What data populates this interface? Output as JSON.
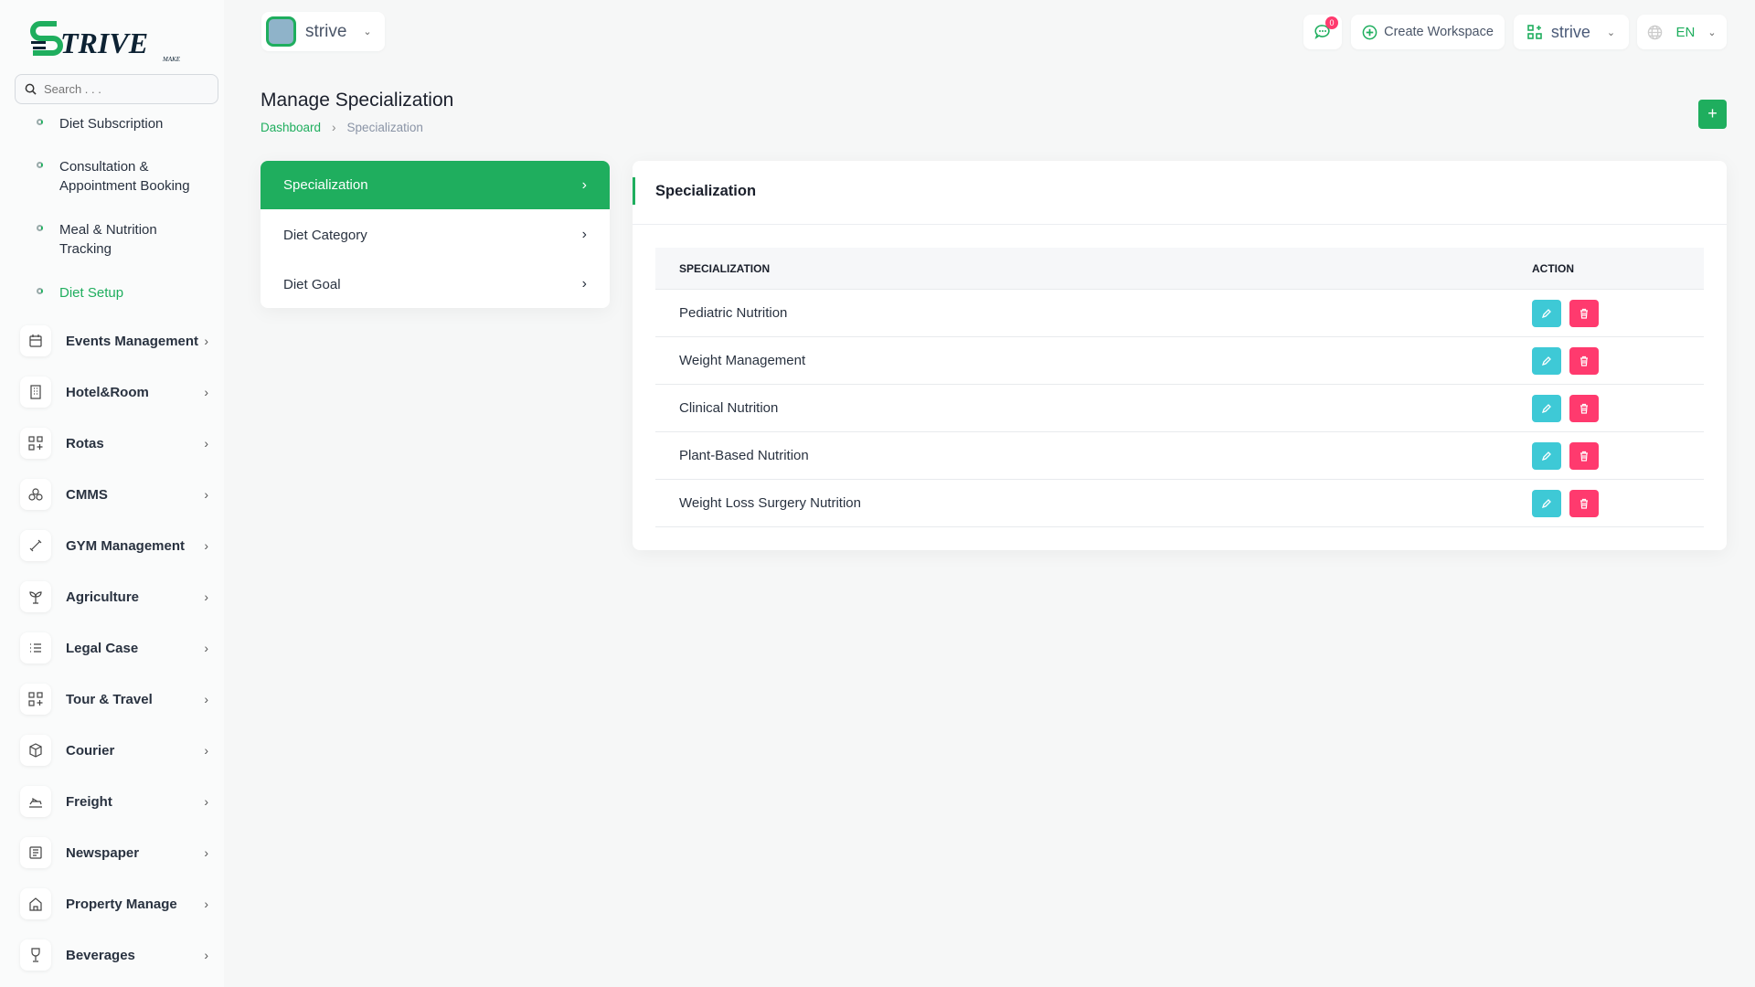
{
  "logo": {
    "text": "STRIVE",
    "sub": "MAKE"
  },
  "search": {
    "placeholder": "Search . . ."
  },
  "sidebar": {
    "sub_items": [
      {
        "label": "Diet Subscription",
        "active": false
      },
      {
        "label": "Consultation & Appointment Booking",
        "active": false
      },
      {
        "label": "Meal & Nutrition Tracking",
        "active": false
      },
      {
        "label": "Diet Setup",
        "active": true
      }
    ],
    "items": [
      {
        "label": "Events Management",
        "icon": "calendar-icon"
      },
      {
        "label": "Hotel&Room",
        "icon": "building-icon"
      },
      {
        "label": "Rotas",
        "icon": "grid-plus-icon"
      },
      {
        "label": "CMMS",
        "icon": "circles-icon"
      },
      {
        "label": "GYM Management",
        "icon": "dumbbell-icon"
      },
      {
        "label": "Agriculture",
        "icon": "plant-icon"
      },
      {
        "label": "Legal Case",
        "icon": "list-icon"
      },
      {
        "label": "Tour & Travel",
        "icon": "grid-plus-icon"
      },
      {
        "label": "Courier",
        "icon": "box-icon"
      },
      {
        "label": "Freight",
        "icon": "ship-icon"
      },
      {
        "label": "Newspaper",
        "icon": "newspaper-icon"
      },
      {
        "label": "Property Manage",
        "icon": "property-icon"
      },
      {
        "label": "Beverages",
        "icon": "glass-icon"
      }
    ]
  },
  "header": {
    "workspace": "strive",
    "notification_count": "0",
    "create_workspace": "Create Workspace",
    "current_workspace": "strive",
    "language": "EN"
  },
  "page": {
    "title": "Manage Specialization",
    "breadcrumb": [
      "Dashboard",
      "Specialization"
    ]
  },
  "setup_menu": [
    "Specialization",
    "Diet Category",
    "Diet Goal"
  ],
  "panel": {
    "title": "Specialization",
    "columns": [
      "SPECIALIZATION",
      "ACTION"
    ],
    "rows": [
      "Pediatric Nutrition",
      "Weight Management",
      "Clinical Nutrition",
      "Plant-Based Nutrition",
      "Weight Loss Surgery Nutrition"
    ]
  },
  "colors": {
    "accent": "#1fae5e",
    "edit": "#3ec9d6",
    "delete": "#ff3a6e"
  }
}
